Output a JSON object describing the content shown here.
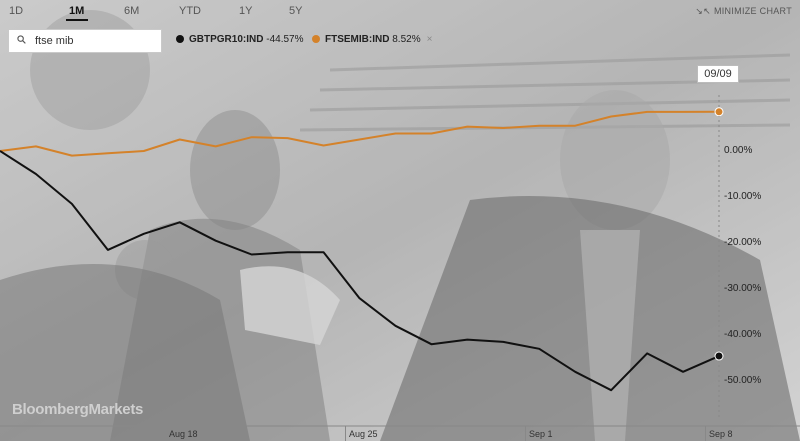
{
  "tabs": {
    "items": [
      {
        "label": "1D"
      },
      {
        "label": "1M",
        "active": true
      },
      {
        "label": "6M"
      },
      {
        "label": "YTD"
      },
      {
        "label": "1Y"
      },
      {
        "label": "5Y"
      }
    ],
    "minimize_label": "MINIMIZE CHART"
  },
  "search": {
    "value": "ftse mib"
  },
  "legend": [
    {
      "ticker": "GBTPGR10:IND",
      "change": "-44.57%",
      "color": "#111111"
    },
    {
      "ticker": "FTSEMIB:IND",
      "change": "8.52%",
      "color": "#d4822a"
    }
  ],
  "crosshair_date": "09/09",
  "brand": "BloombergMarkets",
  "chart_data": {
    "type": "line",
    "yaxis_ticks": [
      "0.00%",
      "-10.00%",
      "-20.00%",
      "-30.00%",
      "-40.00%",
      "-50.00%"
    ],
    "ylim": [
      -53,
      12
    ],
    "xaxis_ticks": [
      "Aug 18",
      "Aug 25",
      "Sep 1",
      "Sep 8"
    ],
    "series": [
      {
        "name": "FTSEMIB:IND",
        "color": "#d4822a",
        "x": [
          "Aug 12",
          "Aug 13",
          "Aug 14",
          "Aug 15",
          "Aug 16",
          "Aug 19",
          "Aug 20",
          "Aug 21",
          "Aug 22",
          "Aug 23",
          "Aug 26",
          "Aug 27",
          "Aug 28",
          "Aug 29",
          "Aug 30",
          "Sep 2",
          "Sep 3",
          "Sep 4",
          "Sep 5",
          "Sep 6",
          "Sep 9"
        ],
        "values": [
          0.0,
          1.0,
          -1.0,
          -0.5,
          0.0,
          2.5,
          1.0,
          3.0,
          2.8,
          1.2,
          2.5,
          3.8,
          3.8,
          5.3,
          5.0,
          5.5,
          5.5,
          7.5,
          8.5,
          8.5,
          8.52
        ]
      },
      {
        "name": "GBTPGR10:IND",
        "color": "#111111",
        "x": [
          "Aug 12",
          "Aug 13",
          "Aug 14",
          "Aug 15",
          "Aug 16",
          "Aug 19",
          "Aug 20",
          "Aug 21",
          "Aug 22",
          "Aug 23",
          "Aug 26",
          "Aug 27",
          "Aug 28",
          "Aug 29",
          "Aug 30",
          "Sep 2",
          "Sep 3",
          "Sep 4",
          "Sep 5",
          "Sep 6",
          "Sep 9"
        ],
        "values": [
          0.0,
          -5.0,
          -11.5,
          -21.5,
          -18.0,
          -15.5,
          -19.5,
          -22.5,
          -22.0,
          -22.0,
          -32.0,
          -38.0,
          -42.0,
          -41.0,
          -41.5,
          -43.0,
          -48.0,
          -52.0,
          -44.0,
          -48.0,
          -44.57
        ]
      }
    ]
  }
}
